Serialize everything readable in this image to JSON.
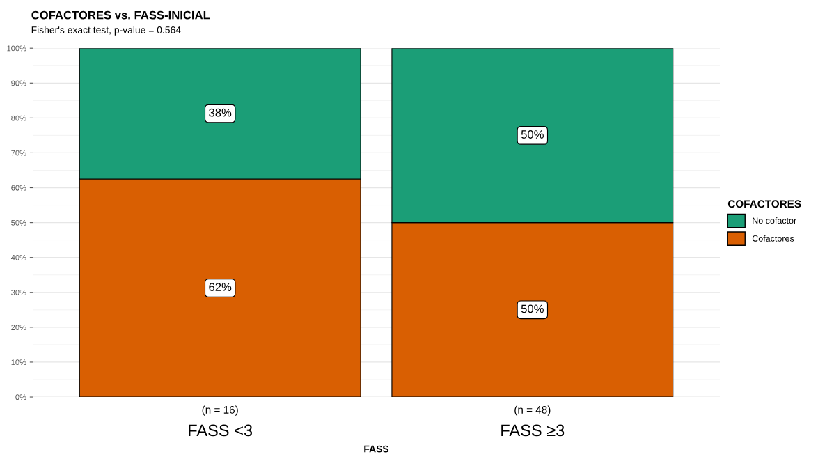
{
  "chart_data": {
    "type": "bar",
    "title": "COFACTORES vs. FASS-INICIAL",
    "subtitle": "Fisher's exact test, p-value = 0.564",
    "xlabel": "FASS",
    "legend_title": "COFACTORES",
    "categories": [
      "FASS <3",
      "FASS ≥3"
    ],
    "stacked": true,
    "series": [
      {
        "name": "Cofactores",
        "color": "#d95f02",
        "values": [
          62.5,
          50
        ],
        "value_labels": [
          "62%",
          "50%"
        ]
      },
      {
        "name": "No cofactor",
        "color": "#1b9e77",
        "values": [
          37.5,
          50
        ],
        "value_labels": [
          "38%",
          "50%"
        ]
      }
    ],
    "ylim": [
      0,
      100
    ],
    "yticks": [
      {
        "value": 0,
        "label": "0%"
      },
      {
        "value": 10,
        "label": "10%"
      },
      {
        "value": 20,
        "label": "20%"
      },
      {
        "value": 30,
        "label": "30%"
      },
      {
        "value": 40,
        "label": "40%"
      },
      {
        "value": 50,
        "label": "50%"
      },
      {
        "value": 60,
        "label": "60%"
      },
      {
        "value": 70,
        "label": "70%"
      },
      {
        "value": 80,
        "label": "80%"
      },
      {
        "value": 90,
        "label": "90%"
      },
      {
        "value": 100,
        "label": "100%"
      }
    ],
    "grid": "y",
    "legend": "right",
    "annotations": [
      "(n = 16)",
      "(n = 48)"
    ]
  }
}
